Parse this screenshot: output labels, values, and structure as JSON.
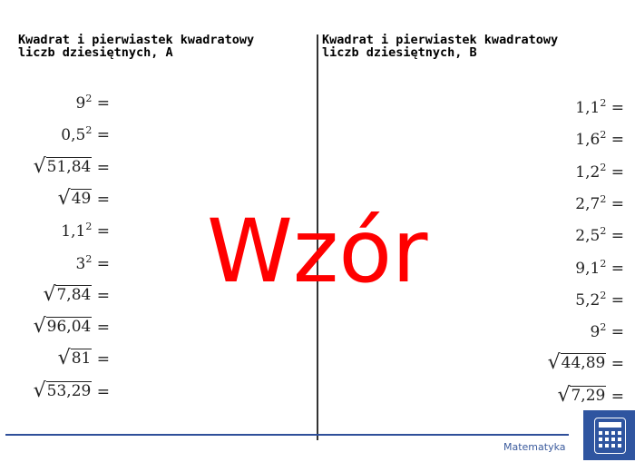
{
  "left": {
    "title": "Kwadrat i pierwiastek kwadratowy\nliczb dziesiętnych, A",
    "items": [
      {
        "base": "9",
        "exp": "2"
      },
      {
        "base": "0,5",
        "exp": "2"
      },
      {
        "sqrt": "51,84"
      },
      {
        "sqrt": "49"
      },
      {
        "base": "1,1",
        "exp": "2"
      },
      {
        "base": "3",
        "exp": "2"
      },
      {
        "sqrt": "7,84"
      },
      {
        "sqrt": "96,04"
      },
      {
        "sqrt": "81"
      },
      {
        "sqrt": "53,29"
      }
    ]
  },
  "right": {
    "title": "Kwadrat i pierwiastek kwadratowy\nliczb dziesiętnych, B",
    "items": [
      {
        "base": "1,1",
        "exp": "2"
      },
      {
        "base": "1,6",
        "exp": "2"
      },
      {
        "base": "1,2",
        "exp": "2"
      },
      {
        "base": "2,7",
        "exp": "2"
      },
      {
        "base": "2,5",
        "exp": "2"
      },
      {
        "base": "9,1",
        "exp": "2"
      },
      {
        "base": "5,2",
        "exp": "2"
      },
      {
        "base": "9",
        "exp": "2"
      },
      {
        "sqrt": "44,89"
      },
      {
        "sqrt": "7,29"
      }
    ]
  },
  "equals": "=",
  "watermark": "Wzór",
  "footer": {
    "brand": "Matematyka",
    "logo_icon": "calculator-icon",
    "accent": "#2f55a0"
  }
}
